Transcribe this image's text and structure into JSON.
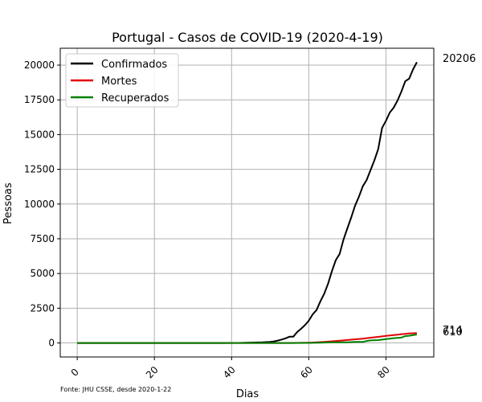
{
  "chart_data": {
    "type": "line",
    "title": "Portugal - Casos de COVID-19 (2020-4-19)",
    "xlabel": "Dias",
    "ylabel": "Pessoas",
    "source_note": "Fonte: JHU CSSE, desde 2020-1-22",
    "xlim": [
      -4.4,
      92.4
    ],
    "ylim": [
      -1010,
      21216
    ],
    "xticks": [
      0,
      20,
      40,
      60,
      80
    ],
    "yticks": [
      0,
      2500,
      5000,
      7500,
      10000,
      12500,
      15000,
      17500,
      20000
    ],
    "grid": true,
    "legend_position": "top-left",
    "end_labels": [
      "20206",
      "714",
      "610"
    ],
    "series": [
      {
        "name": "Confirmados",
        "color": "#000000",
        "x": [
          0,
          38,
          40,
          42,
          44,
          46,
          48,
          50,
          51,
          52,
          53,
          54,
          55,
          56,
          57,
          58,
          59,
          60,
          61,
          62,
          63,
          64,
          65,
          66,
          67,
          68,
          69,
          70,
          71,
          72,
          73,
          74,
          75,
          76,
          77,
          78,
          79,
          80,
          81,
          82,
          83,
          84,
          85,
          86,
          87,
          88
        ],
        "values": [
          0,
          0,
          2,
          4,
          13,
          30,
          41,
          78,
          112,
          169,
          245,
          331,
          448,
          448,
          785,
          1020,
          1280,
          1600,
          2060,
          2362,
          2995,
          3544,
          4268,
          5170,
          5962,
          6408,
          7443,
          8251,
          9034,
          9886,
          10524,
          11278,
          11730,
          12442,
          13141,
          13956,
          15472,
          15987,
          16585,
          16934,
          17448,
          18091,
          18841,
          19022,
          19685,
          20206
        ]
      },
      {
        "name": "Mortes",
        "color": "#e00000",
        "x": [
          0,
          55,
          58,
          60,
          62,
          64,
          66,
          68,
          70,
          72,
          74,
          76,
          78,
          80,
          82,
          84,
          86,
          88
        ],
        "values": [
          0,
          0,
          6,
          23,
          43,
          76,
          119,
          160,
          209,
          266,
          311,
          380,
          435,
          504,
          567,
          629,
          687,
          714
        ]
      },
      {
        "name": "Recuperados",
        "color": "#008000",
        "x": [
          0,
          56,
          60,
          63,
          66,
          68,
          70,
          72,
          74,
          75,
          76,
          78,
          80,
          82,
          84,
          85,
          86,
          88
        ],
        "values": [
          0,
          0,
          5,
          14,
          43,
          43,
          43,
          75,
          75,
          140,
          184,
          205,
          277,
          347,
          383,
          493,
          519,
          610
        ]
      }
    ]
  }
}
